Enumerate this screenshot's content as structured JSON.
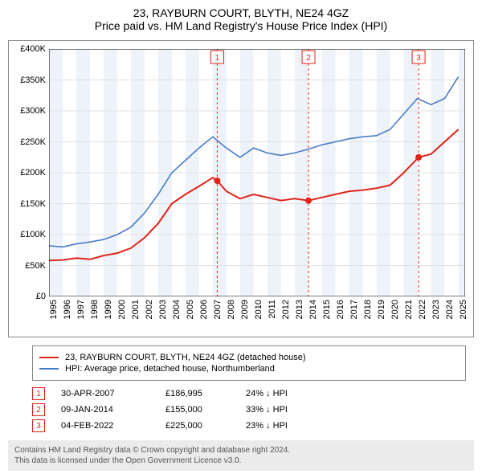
{
  "title": {
    "line1": "23, RAYBURN COURT, BLYTH, NE24 4GZ",
    "line2": "Price paid vs. HM Land Registry's House Price Index (HPI)"
  },
  "chart": {
    "type": "line",
    "background_color": "#ffffff",
    "border_color": "#888888",
    "grid_color": "#e0e0e0",
    "band_color": "#edf3f9",
    "xlim": [
      1995,
      2025.5
    ],
    "ylim": [
      0,
      400000
    ],
    "y_ticks": [
      0,
      50000,
      100000,
      150000,
      200000,
      250000,
      300000,
      350000,
      400000
    ],
    "y_tick_labels": [
      "£0",
      "£50K",
      "£100K",
      "£150K",
      "£200K",
      "£250K",
      "£300K",
      "£350K",
      "£400K"
    ],
    "x_ticks": [
      1995,
      1996,
      1997,
      1998,
      1999,
      2000,
      2001,
      2002,
      2003,
      2004,
      2005,
      2006,
      2007,
      2008,
      2009,
      2010,
      2011,
      2012,
      2013,
      2014,
      2015,
      2016,
      2017,
      2018,
      2019,
      2020,
      2021,
      2022,
      2023,
      2024,
      2025
    ],
    "series": [
      {
        "name": "23, RAYBURN COURT, BLYTH, NE24 4GZ (detached house)",
        "color": "#e2231a",
        "line_width": 2,
        "data": [
          [
            1995,
            58000
          ],
          [
            1996,
            59000
          ],
          [
            1997,
            62000
          ],
          [
            1998,
            60000
          ],
          [
            1999,
            66000
          ],
          [
            2000,
            70000
          ],
          [
            2001,
            78000
          ],
          [
            2002,
            95000
          ],
          [
            2003,
            118000
          ],
          [
            2004,
            150000
          ],
          [
            2005,
            165000
          ],
          [
            2006,
            178000
          ],
          [
            2007,
            192000
          ],
          [
            2007.33,
            186995
          ],
          [
            2008,
            170000
          ],
          [
            2009,
            158000
          ],
          [
            2010,
            165000
          ],
          [
            2011,
            160000
          ],
          [
            2012,
            155000
          ],
          [
            2013,
            158000
          ],
          [
            2014.02,
            155000
          ],
          [
            2015,
            160000
          ],
          [
            2016,
            165000
          ],
          [
            2017,
            170000
          ],
          [
            2018,
            172000
          ],
          [
            2019,
            175000
          ],
          [
            2020,
            180000
          ],
          [
            2021,
            200000
          ],
          [
            2022.09,
            225000
          ],
          [
            2023,
            230000
          ],
          [
            2024,
            250000
          ],
          [
            2025,
            270000
          ]
        ]
      },
      {
        "name": "HPI: Average price, detached house, Northumberland",
        "color": "#4a7bc9",
        "line_width": 1.6,
        "data": [
          [
            1995,
            82000
          ],
          [
            1996,
            80000
          ],
          [
            1997,
            85000
          ],
          [
            1998,
            88000
          ],
          [
            1999,
            92000
          ],
          [
            2000,
            100000
          ],
          [
            2001,
            112000
          ],
          [
            2002,
            135000
          ],
          [
            2003,
            165000
          ],
          [
            2004,
            200000
          ],
          [
            2005,
            220000
          ],
          [
            2006,
            240000
          ],
          [
            2007,
            258000
          ],
          [
            2008,
            240000
          ],
          [
            2009,
            225000
          ],
          [
            2010,
            240000
          ],
          [
            2011,
            232000
          ],
          [
            2012,
            228000
          ],
          [
            2013,
            232000
          ],
          [
            2014,
            238000
          ],
          [
            2015,
            245000
          ],
          [
            2016,
            250000
          ],
          [
            2017,
            255000
          ],
          [
            2018,
            258000
          ],
          [
            2019,
            260000
          ],
          [
            2020,
            270000
          ],
          [
            2021,
            295000
          ],
          [
            2022,
            320000
          ],
          [
            2023,
            310000
          ],
          [
            2024,
            320000
          ],
          [
            2025,
            355000
          ]
        ]
      }
    ],
    "sale_markers": [
      {
        "num": "1",
        "x": 2007.33,
        "y": 186995,
        "color": "#e2231a"
      },
      {
        "num": "2",
        "x": 2014.02,
        "y": 155000,
        "color": "#e2231a"
      },
      {
        "num": "3",
        "x": 2022.09,
        "y": 225000,
        "color": "#e2231a"
      }
    ]
  },
  "legend": {
    "items": [
      {
        "color": "#e2231a",
        "label": "23, RAYBURN COURT, BLYTH, NE24 4GZ (detached house)"
      },
      {
        "color": "#4a7bc9",
        "label": "HPI: Average price, detached house, Northumberland"
      }
    ]
  },
  "sales": [
    {
      "num": "1",
      "color": "#e2231a",
      "date": "30-APR-2007",
      "price": "£186,995",
      "diff": "24% ↓ HPI"
    },
    {
      "num": "2",
      "color": "#e2231a",
      "date": "09-JAN-2014",
      "price": "£155,000",
      "diff": "33% ↓ HPI"
    },
    {
      "num": "3",
      "color": "#e2231a",
      "date": "04-FEB-2022",
      "price": "£225,000",
      "diff": "23% ↓ HPI"
    }
  ],
  "footer": {
    "line1": "Contains HM Land Registry data © Crown copyright and database right 2024.",
    "line2": "This data is licensed under the Open Government Licence v3.0."
  }
}
